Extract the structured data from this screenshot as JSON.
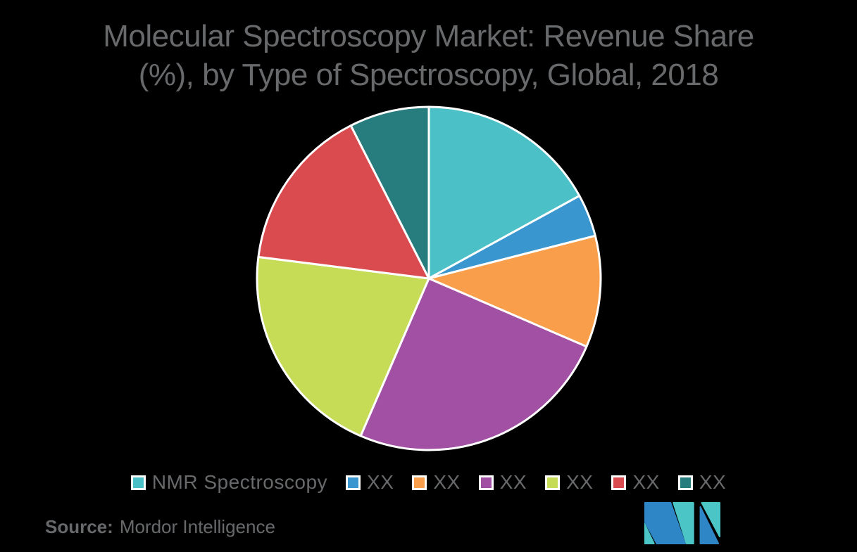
{
  "title": {
    "line1": "Molecular Spectroscopy Market: Revenue Share",
    "line2": "(%), by Type of Spectroscopy, Global, 2018"
  },
  "chart_data": {
    "type": "pie",
    "title": "Molecular Spectroscopy Market: Revenue Share (%), by Type of Spectroscopy, Global, 2018",
    "labels": [
      "NMR Spectroscopy",
      "XX",
      "XX",
      "XX",
      "XX",
      "XX",
      "XX"
    ],
    "values": [
      17,
      4,
      10.5,
      25,
      20.5,
      15.5,
      7.5
    ],
    "values_note": "slice sizes estimated from arc angles; data labels are masked as XX in the figure",
    "colors": [
      "#4BC1C7",
      "#3A96CE",
      "#F99F4B",
      "#A150A4",
      "#C6DB56",
      "#D94B4F",
      "#277C7D"
    ],
    "start_angle_deg": 0,
    "direction": "clockwise",
    "slice_border_color": "#FFFFFF",
    "legend_position": "bottom",
    "background": "#000000"
  },
  "source": {
    "label": "Source:",
    "value": "Mordor Intelligence"
  },
  "logo": {
    "name": "Mordor Intelligence monogram",
    "blue": "#2F86C6",
    "teal": "#4BC5C6"
  },
  "text_color": "#67696B"
}
